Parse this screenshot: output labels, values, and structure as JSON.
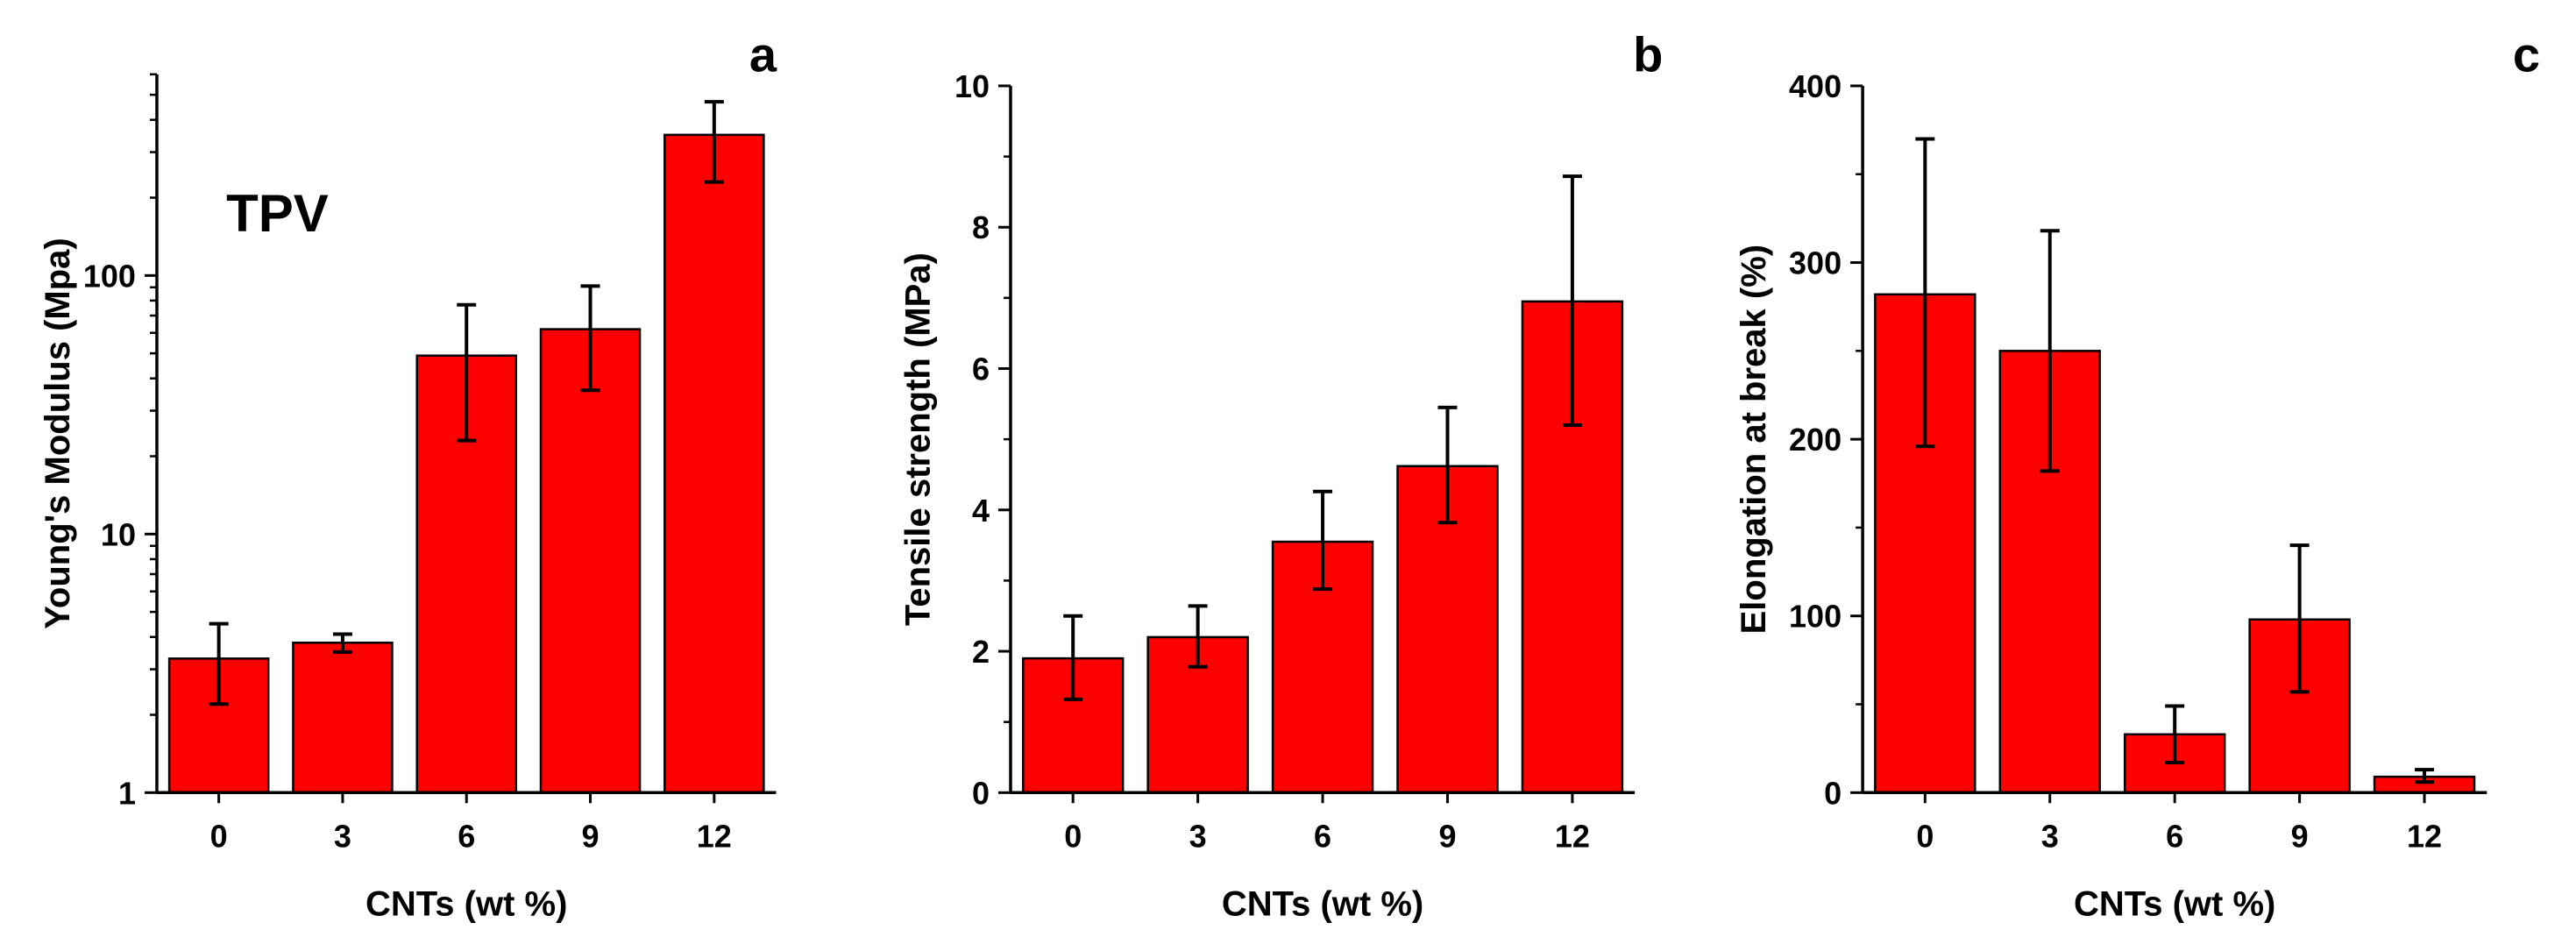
{
  "chart_data": [
    {
      "panel": "a",
      "type": "bar",
      "yscale": "log",
      "annotation": "TPV",
      "xlabel": "CNTs (wt %)",
      "ylabel": "Young's Modulus (Mpa)",
      "categories": [
        "0",
        "3",
        "6",
        "9",
        "12"
      ],
      "values": [
        3.3,
        3.8,
        49,
        62,
        350
      ],
      "errors_low": [
        2.2,
        3.5,
        23,
        36,
        230
      ],
      "errors_high": [
        4.5,
        4.1,
        77,
        91,
        470
      ],
      "ylim": [
        1,
        600
      ],
      "yticks": [
        1,
        10,
        100
      ],
      "ytick_labels": [
        "1",
        "10",
        "100"
      ],
      "bar_color": "#ff0000"
    },
    {
      "panel": "b",
      "type": "bar",
      "yscale": "linear",
      "xlabel": "CNTs (wt %)",
      "ylabel": "Tensile strength (MPa)",
      "categories": [
        "0",
        "3",
        "6",
        "9",
        "12"
      ],
      "values": [
        1.9,
        2.2,
        3.55,
        4.62,
        6.95
      ],
      "errors_low": [
        1.32,
        1.78,
        2.88,
        3.82,
        5.2
      ],
      "errors_high": [
        2.5,
        2.64,
        4.26,
        5.45,
        8.72
      ],
      "ylim": [
        0,
        10
      ],
      "yticks": [
        0,
        2,
        4,
        6,
        8,
        10
      ],
      "ytick_labels": [
        "0",
        "2",
        "4",
        "6",
        "8",
        "10"
      ],
      "bar_color": "#ff0000"
    },
    {
      "panel": "c",
      "type": "bar",
      "yscale": "linear",
      "xlabel": "CNTs (wt %)",
      "ylabel": "Elongation at break (%)",
      "categories": [
        "0",
        "3",
        "6",
        "9",
        "12"
      ],
      "values": [
        282,
        250,
        33,
        98,
        9
      ],
      "errors_low": [
        196,
        182,
        17,
        57,
        6
      ],
      "errors_high": [
        370,
        318,
        49,
        140,
        13
      ],
      "ylim": [
        0,
        400
      ],
      "yticks": [
        0,
        100,
        200,
        300,
        400
      ],
      "ytick_labels": [
        "0",
        "100",
        "200",
        "300",
        "400"
      ],
      "bar_color": "#ff0000"
    }
  ]
}
